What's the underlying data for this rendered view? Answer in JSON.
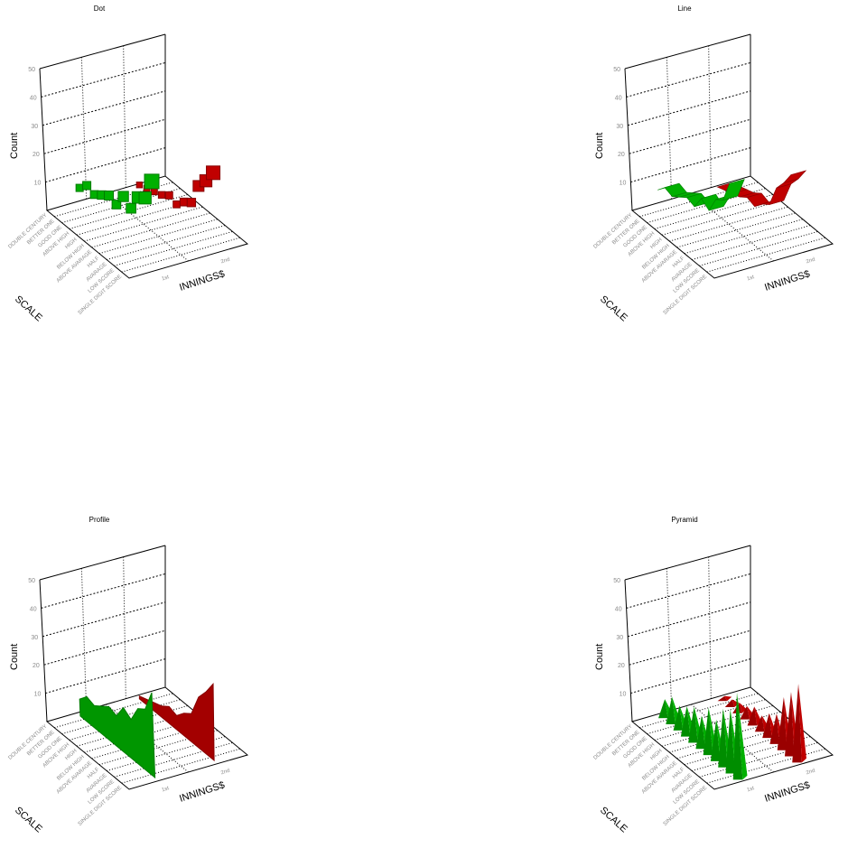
{
  "colors": {
    "1st": "#00b000",
    "2nd": "#c00000"
  },
  "chart_data": [
    {
      "type": "scatter",
      "title": "Dot",
      "xlabel": "INNINGS$",
      "zlabel": "SCALE",
      "ylabel": "Count",
      "ylim": [
        0,
        50
      ],
      "yticks": [
        "10",
        "20",
        "30",
        "40",
        "50"
      ],
      "x": [
        "1st",
        "2nd"
      ],
      "categories": [
        "DOUBLE CENTURY",
        "BETTER ONE",
        "GOOD ONE",
        "ABOVE HIGH",
        "HIGH",
        "BELOW HIGH",
        "ABOVE AVARAGE",
        "HALF",
        "AVARAGE",
        "LOW SCORE",
        "SINGLE DIGIT SCORE"
      ],
      "series": [
        {
          "name": "1st",
          "values": [
            6,
            9,
            8,
            10,
            12,
            11,
            16,
            14,
            20,
            22,
            30
          ]
        },
        {
          "name": "2nd",
          "values": [
            1,
            2,
            3,
            4,
            6,
            5,
            8,
            10,
            18,
            22,
            27
          ]
        }
      ]
    },
    {
      "type": "line",
      "title": "Line",
      "xlabel": "INNINGS$",
      "zlabel": "SCALE",
      "ylabel": "Count",
      "ylim": [
        0,
        50
      ],
      "yticks": [
        "10",
        "20",
        "30",
        "40",
        "50"
      ],
      "x": [
        "1st",
        "2nd"
      ],
      "categories": [
        "DOUBLE CENTURY",
        "BETTER ONE",
        "GOOD ONE",
        "ABOVE HIGH",
        "HIGH",
        "BELOW HIGH",
        "ABOVE AVARAGE",
        "HALF",
        "AVARAGE",
        "LOW SCORE",
        "SINGLE DIGIT SCORE"
      ],
      "series": [
        {
          "name": "1st",
          "values": [
            6,
            9,
            8,
            10,
            12,
            11,
            16,
            14,
            20,
            22,
            30
          ]
        },
        {
          "name": "2nd",
          "values": [
            1,
            2,
            3,
            4,
            6,
            5,
            8,
            10,
            18,
            22,
            27
          ]
        }
      ]
    },
    {
      "type": "area",
      "title": "Profile",
      "xlabel": "INNINGS$",
      "zlabel": "SCALE",
      "ylabel": "Count",
      "ylim": [
        0,
        50
      ],
      "yticks": [
        "10",
        "20",
        "30",
        "40",
        "50"
      ],
      "x": [
        "1st",
        "2nd"
      ],
      "categories": [
        "DOUBLE CENTURY",
        "BETTER ONE",
        "GOOD ONE",
        "ABOVE HIGH",
        "HIGH",
        "BELOW HIGH",
        "ABOVE AVARAGE",
        "HALF",
        "AVARAGE",
        "LOW SCORE",
        "SINGLE DIGIT SCORE"
      ],
      "series": [
        {
          "name": "1st",
          "values": [
            6,
            9,
            8,
            10,
            12,
            11,
            16,
            14,
            20,
            22,
            30
          ]
        },
        {
          "name": "2nd",
          "values": [
            1,
            2,
            3,
            4,
            6,
            5,
            8,
            10,
            18,
            22,
            27
          ]
        }
      ]
    },
    {
      "type": "bar",
      "title": "Pyramid",
      "xlabel": "INNINGS$",
      "zlabel": "SCALE",
      "ylabel": "Count",
      "ylim": [
        0,
        50
      ],
      "yticks": [
        "10",
        "20",
        "30",
        "40",
        "50"
      ],
      "x": [
        "1st",
        "2nd"
      ],
      "categories": [
        "DOUBLE CENTURY",
        "BETTER ONE",
        "GOOD ONE",
        "ABOVE HIGH",
        "HIGH",
        "BELOW HIGH",
        "ABOVE AVARAGE",
        "HALF",
        "AVARAGE",
        "LOW SCORE",
        "SINGLE DIGIT SCORE"
      ],
      "series": [
        {
          "name": "1st",
          "values": [
            6,
            9,
            8,
            10,
            12,
            11,
            16,
            14,
            20,
            22,
            30
          ]
        },
        {
          "name": "2nd",
          "values": [
            1,
            2,
            3,
            4,
            6,
            5,
            8,
            10,
            18,
            22,
            27
          ]
        }
      ]
    }
  ]
}
